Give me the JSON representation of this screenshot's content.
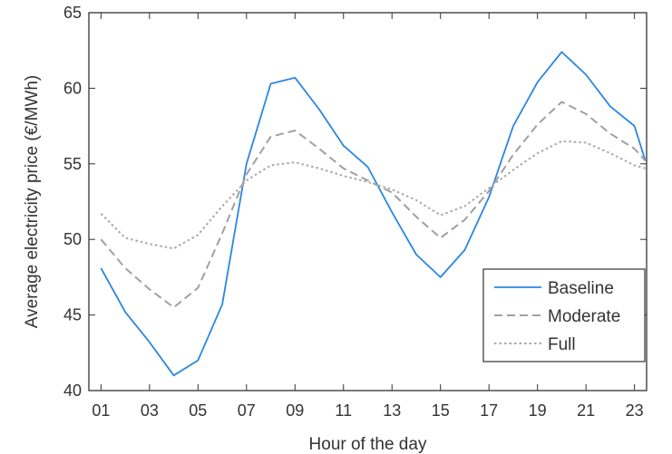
{
  "chart_data": {
    "type": "line",
    "xlabel": "Hour of the day",
    "ylabel": "Average electricity price (€/MWh)",
    "xlim": [
      0.5,
      23.5
    ],
    "ylim": [
      40,
      65
    ],
    "x_ticks": [
      1,
      3,
      5,
      7,
      9,
      11,
      13,
      15,
      17,
      19,
      21,
      23
    ],
    "x_tick_labels": [
      "01",
      "03",
      "05",
      "07",
      "09",
      "11",
      "13",
      "15",
      "17",
      "19",
      "21",
      "23"
    ],
    "y_ticks": [
      40,
      45,
      50,
      55,
      60,
      65
    ],
    "y_tick_labels": [
      "40",
      "45",
      "50",
      "55",
      "60",
      "65"
    ],
    "x": [
      1,
      2,
      3,
      4,
      5,
      6,
      7,
      8,
      9,
      10,
      11,
      12,
      13,
      14,
      15,
      16,
      17,
      18,
      19,
      20,
      21,
      22,
      23
    ],
    "legend_position": "lower-right",
    "grid": false,
    "series": [
      {
        "name": "Baseline",
        "color": "#2b86e0",
        "style": "solid",
        "values": [
          48.1,
          45.2,
          43.2,
          41.0,
          42.0,
          45.7,
          55.0,
          60.3,
          60.7,
          58.6,
          56.2,
          54.8,
          51.8,
          49.0,
          47.5,
          49.3,
          52.8,
          57.5,
          60.4,
          62.4,
          60.9,
          58.8,
          57.5
        ]
      },
      {
        "name": "Moderate",
        "color": "#a0a0a0",
        "style": "dashed",
        "values": [
          50.0,
          48.1,
          46.7,
          45.5,
          46.8,
          50.4,
          54.3,
          56.8,
          57.2,
          56.0,
          54.7,
          53.9,
          53.1,
          51.5,
          50.1,
          51.3,
          53.2,
          55.6,
          57.6,
          59.1,
          58.3,
          57.0,
          56.0
        ]
      },
      {
        "name": "Full",
        "color": "#a8a8a8",
        "style": "dotted",
        "values": [
          51.7,
          50.1,
          49.7,
          49.4,
          50.3,
          52.2,
          53.9,
          54.9,
          55.1,
          54.7,
          54.2,
          53.8,
          53.3,
          52.6,
          51.6,
          52.2,
          53.4,
          54.6,
          55.7,
          56.5,
          56.4,
          55.7,
          54.9
        ]
      }
    ],
    "endpoints": {
      "last_x": 23.45,
      "last_values": [
        55.2,
        55.2,
        54.7
      ]
    }
  }
}
